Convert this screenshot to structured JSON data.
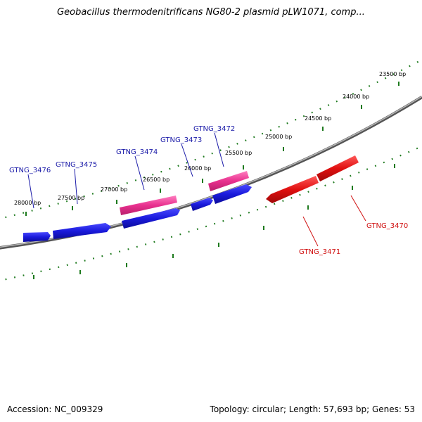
{
  "title": "Geobacillus thermodenitrificans NG80-2 plasmid pLW1071, comp...",
  "footer": {
    "accession": "Accession: NC_009329",
    "summary": "Topology: circular; Length: 57,693 bp; Genes: 53"
  },
  "ruler_ticks": [
    {
      "text": "23500 bp"
    },
    {
      "text": "24000 bp"
    },
    {
      "text": "24500 bp"
    },
    {
      "text": "25000 bp"
    },
    {
      "text": "25500 bp"
    },
    {
      "text": "26000 bp"
    },
    {
      "text": "26500 bp"
    },
    {
      "text": "27000 bp"
    },
    {
      "text": "27500 bp"
    },
    {
      "text": "28000 bp"
    }
  ],
  "gene_labels": [
    {
      "text": "GTNG_3476"
    },
    {
      "text": "GTNG_3475"
    },
    {
      "text": "GTNG_3474"
    },
    {
      "text": "GTNG_3473"
    },
    {
      "text": "GTNG_3472"
    },
    {
      "text": "GTNG_3471"
    },
    {
      "text": "GTNG_3470"
    }
  ],
  "colors": {
    "forward_gene": "#1a1adc",
    "forward_gene_highlight": "#e8308e",
    "reverse_gene": "#e01010",
    "backbone": "#7a7a7a",
    "ruler": "#1e7a1e",
    "forward_label": "#1a1aa8",
    "reverse_label": "#d01010"
  }
}
